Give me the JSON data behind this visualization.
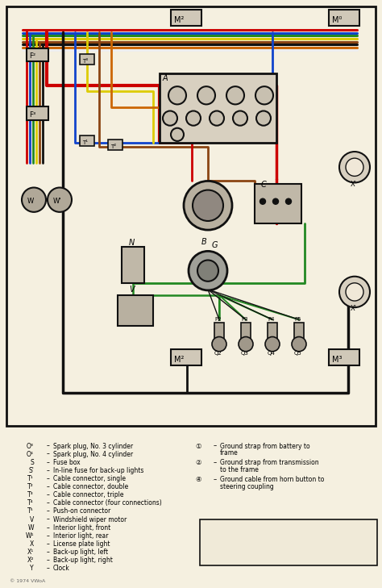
{
  "bg_color": "#f5f0e0",
  "diagram_bg": "#f5f0e0",
  "wire_colors": {
    "red": "#cc0000",
    "black": "#111111",
    "blue": "#1144cc",
    "green": "#228822",
    "yellow": "#ddcc00",
    "brown": "#8B4513",
    "orange": "#cc6600",
    "white": "#eeeeee",
    "gray": "#888888"
  },
  "legend_left": [
    [
      "O³",
      "Spark plug, No. 3 cylinder"
    ],
    [
      "O⁴",
      "Spark plug, No. 4 cylinder"
    ],
    [
      "S",
      "Fuse box"
    ],
    [
      "S'",
      "In-line fuse for back-up lights"
    ],
    [
      "T¹",
      "Cable connector, single"
    ],
    [
      "T²",
      "Cable connector, double"
    ],
    [
      "T³",
      "Cable connector, triple"
    ],
    [
      "T⁴",
      "Cable connector (four connections)"
    ],
    [
      "T⁵",
      "Push-on connector"
    ],
    [
      "V",
      "Windshield wiper motor"
    ],
    [
      "W",
      "Interior light, front"
    ],
    [
      "W¹",
      "Interior light, rear"
    ],
    [
      "X",
      "License plate light"
    ],
    [
      "X¹",
      "Back-up light, left"
    ],
    [
      "X²",
      "Back-up light, right"
    ],
    [
      "Y",
      "Clock"
    ]
  ],
  "legend_right": [
    [
      "①",
      "Ground strap from battery to frame"
    ],
    [
      "②",
      "Ground strap from transmission to the frame"
    ],
    [
      "④",
      "Ground cable from horn button to steering coupling"
    ]
  ],
  "copyright": "© 1974 VWoA",
  "figsize": [
    4.74,
    7.29
  ],
  "dpi": 100
}
